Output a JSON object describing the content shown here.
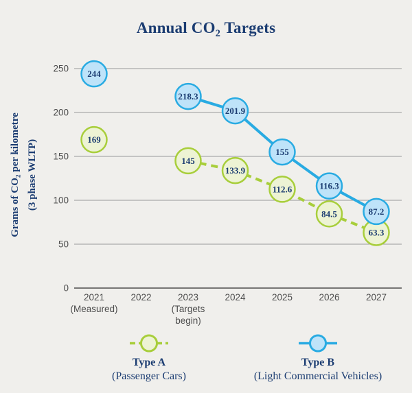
{
  "title": {
    "prefix": "Annual CO",
    "sub": "2",
    "suffix": " Targets"
  },
  "y_axis": {
    "label_line1_prefix": "Grams of CO",
    "label_line1_sub": "2",
    "label_line1_suffix": " per kilometre",
    "label_line2": "(3 phase WLTP)"
  },
  "chart_data": {
    "type": "line",
    "title": "Annual CO2 Targets",
    "ylabel": "Grams of CO2 per kilometre (3 phase WLTP)",
    "ylim": [
      0,
      250
    ],
    "yticks": [
      0,
      50,
      100,
      150,
      200,
      250
    ],
    "grid": true,
    "legend_position": "bottom",
    "categories": [
      "2021",
      "2022",
      "2023",
      "2024",
      "2025",
      "2026",
      "2027"
    ],
    "x_sublabels": [
      [
        "(Measured)"
      ],
      [],
      [
        "(Targets",
        "begin)"
      ],
      [],
      [],
      [],
      []
    ],
    "series": [
      {
        "name": "Type A",
        "subtitle": "(Passenger Cars)",
        "line_style": "dashed",
        "stroke": "#a8ce3b",
        "fill": "#edf3d4",
        "line_begins_at": "2023",
        "values": [
          169,
          null,
          145,
          133.9,
          112.6,
          84.5,
          63.3
        ]
      },
      {
        "name": "Type B",
        "subtitle": "(Light Commercial Vehicles)",
        "line_style": "solid",
        "stroke": "#29abe2",
        "fill": "#bee3f9",
        "line_begins_at": "2023",
        "values": [
          244,
          null,
          218.3,
          201.9,
          155,
          116.3,
          87.2
        ]
      }
    ]
  },
  "colors": {
    "background": "#f0efec",
    "navy_text": "#1c3d72",
    "axis_text": "#4d4d4d",
    "gridline": "#98989a",
    "axis_line": "#4d4d4d"
  }
}
